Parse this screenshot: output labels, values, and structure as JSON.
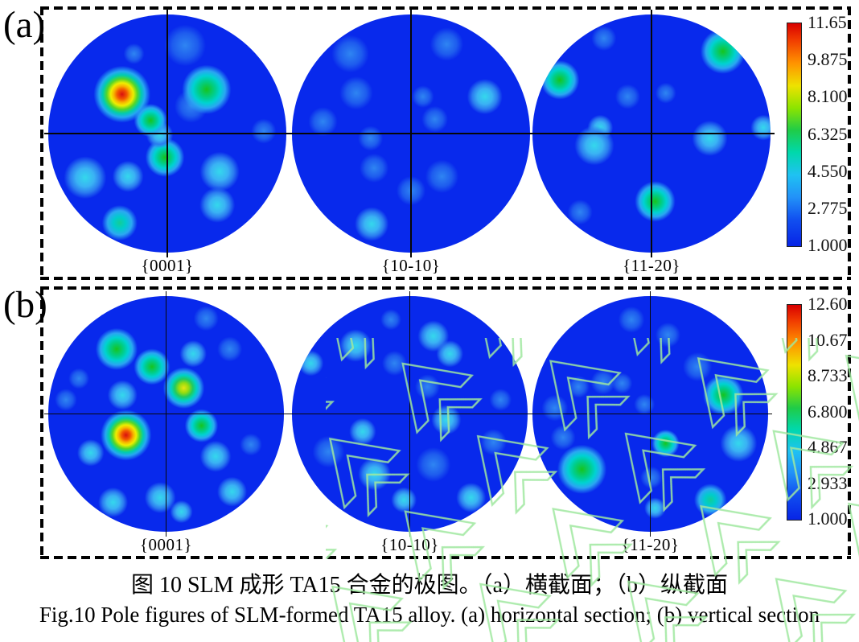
{
  "figure": {
    "caption_zh": "图 10 SLM 成形 TA15 合金的极图。（a）横截面；（b）纵截面",
    "caption_en": "Fig.10 Pole figures of SLM-formed TA15 alloy. (a) horizontal section; (b) vertical section"
  },
  "chart_data": {
    "type": "heatmap",
    "subtype": "EBSD pole figures, jet colormap, two panels of three stereographic projections each",
    "base_color": "#0829ec",
    "crosshair_color": "#070707",
    "watermark_color": "#9fe89f",
    "colorbar_gradient": [
      [
        "#d80000",
        0
      ],
      [
        "#f03800",
        7
      ],
      [
        "#ff9400",
        18
      ],
      [
        "#eee200",
        28
      ],
      [
        "#8ce400",
        38
      ],
      [
        "#1fcc48",
        48
      ],
      [
        "#00d8ac",
        58
      ],
      [
        "#1fc2f2",
        68
      ],
      [
        "#2292f8",
        78
      ],
      [
        "#1150f0",
        88
      ],
      [
        "#0724e6",
        100
      ]
    ],
    "levels": {
      "red": [
        [
          "#d81010",
          0
        ],
        [
          "#f25800",
          16
        ],
        [
          "#f7b400",
          27
        ],
        [
          "#eeee00",
          37
        ],
        [
          "#55d628",
          50
        ],
        [
          "#00ccb0",
          63
        ],
        [
          "#26a8f2",
          75
        ],
        [
          "rgba(30,80,240,0)",
          93
        ]
      ],
      "yellow": [
        [
          "#e6e612",
          0
        ],
        [
          "#96dc10",
          22
        ],
        [
          "#22ca5e",
          40
        ],
        [
          "#00d2c6",
          57
        ],
        [
          "#2aa2f2",
          72
        ],
        [
          "rgba(30,80,240,0)",
          92
        ]
      ],
      "green": [
        [
          "#16c41e",
          0
        ],
        [
          "#00ce8e",
          32
        ],
        [
          "#00d2d2",
          50
        ],
        [
          "#2aa6f2",
          68
        ],
        [
          "rgba(30,80,240,0)",
          90
        ]
      ],
      "teal": [
        [
          "#14cc96",
          0
        ],
        [
          "#00cccc",
          30
        ],
        [
          "#2ca8f2",
          60
        ],
        [
          "rgba(30,80,240,0)",
          88
        ]
      ],
      "cyan": [
        [
          "#34d8ec",
          0
        ],
        [
          "#3ab2f4",
          38
        ],
        [
          "#2b7df0",
          62
        ],
        [
          "rgba(30,80,240,0)",
          88
        ]
      ],
      "faint": [
        [
          "#2f85f2",
          0
        ],
        [
          "#1e5cee",
          52
        ],
        [
          "rgba(16,56,232,0)",
          86
        ]
      ]
    },
    "panels": [
      {
        "tag": "(a)",
        "section_zh": "横截面",
        "section_en": "horizontal section",
        "colorbar": {
          "max": 11.65,
          "min": 1.0,
          "ticks": [
            "11.65",
            "9.875",
            "8.100",
            "6.325",
            "4.550",
            "2.775",
            "1.000"
          ]
        },
        "pole_figures": [
          {
            "label": "{0001}",
            "hotspots": [
              {
                "x": 0.31,
                "y": 0.335,
                "r": 0.13,
                "level": "red"
              },
              {
                "x": 0.665,
                "y": 0.315,
                "r": 0.115,
                "level": "green"
              },
              {
                "x": 0.6,
                "y": 0.385,
                "r": 0.08,
                "level": "faint"
              },
              {
                "x": 0.43,
                "y": 0.445,
                "r": 0.078,
                "level": "green"
              },
              {
                "x": 0.468,
                "y": 0.505,
                "r": 0.065,
                "level": "cyan"
              },
              {
                "x": 0.49,
                "y": 0.6,
                "r": 0.092,
                "level": "green"
              },
              {
                "x": 0.3,
                "y": 0.875,
                "r": 0.085,
                "level": "teal"
              },
              {
                "x": 0.155,
                "y": 0.685,
                "r": 0.1,
                "level": "cyan"
              },
              {
                "x": 0.335,
                "y": 0.68,
                "r": 0.075,
                "level": "cyan"
              },
              {
                "x": 0.72,
                "y": 0.66,
                "r": 0.095,
                "level": "cyan"
              },
              {
                "x": 0.71,
                "y": 0.8,
                "r": 0.085,
                "level": "cyan"
              },
              {
                "x": 0.575,
                "y": 0.13,
                "r": 0.1,
                "level": "faint"
              },
              {
                "x": 0.905,
                "y": 0.49,
                "r": 0.06,
                "level": "faint"
              },
              {
                "x": 0.36,
                "y": 0.165,
                "r": 0.05,
                "level": "faint"
              }
            ]
          },
          {
            "label": "{10-10}",
            "hotspots": [
              {
                "x": 0.81,
                "y": 0.345,
                "r": 0.085,
                "level": "cyan"
              },
              {
                "x": 0.335,
                "y": 0.88,
                "r": 0.08,
                "level": "cyan"
              },
              {
                "x": 0.245,
                "y": 0.165,
                "r": 0.09,
                "level": "faint"
              },
              {
                "x": 0.65,
                "y": 0.125,
                "r": 0.08,
                "level": "faint"
              },
              {
                "x": 0.27,
                "y": 0.33,
                "r": 0.08,
                "level": "faint"
              },
              {
                "x": 0.13,
                "y": 0.45,
                "r": 0.07,
                "level": "faint"
              },
              {
                "x": 0.6,
                "y": 0.44,
                "r": 0.065,
                "level": "faint"
              },
              {
                "x": 0.345,
                "y": 0.645,
                "r": 0.07,
                "level": "faint"
              },
              {
                "x": 0.5,
                "y": 0.74,
                "r": 0.07,
                "level": "faint"
              },
              {
                "x": 0.63,
                "y": 0.68,
                "r": 0.08,
                "level": "faint"
              },
              {
                "x": 0.33,
                "y": 0.52,
                "r": 0.06,
                "level": "faint"
              },
              {
                "x": 0.55,
                "y": 0.345,
                "r": 0.055,
                "level": "faint"
              }
            ]
          },
          {
            "label": "{11-20}",
            "hotspots": [
              {
                "x": 0.8,
                "y": 0.155,
                "r": 0.105,
                "level": "green"
              },
              {
                "x": 0.86,
                "y": 0.105,
                "r": 0.07,
                "level": "cyan"
              },
              {
                "x": 0.115,
                "y": 0.275,
                "r": 0.09,
                "level": "green"
              },
              {
                "x": 0.26,
                "y": 0.55,
                "r": 0.095,
                "level": "cyan"
              },
              {
                "x": 0.285,
                "y": 0.475,
                "r": 0.06,
                "level": "cyan"
              },
              {
                "x": 0.745,
                "y": 0.52,
                "r": 0.085,
                "level": "cyan"
              },
              {
                "x": 0.515,
                "y": 0.785,
                "r": 0.095,
                "level": "green"
              },
              {
                "x": 0.4,
                "y": 0.345,
                "r": 0.06,
                "level": "faint"
              },
              {
                "x": 0.56,
                "y": 0.33,
                "r": 0.05,
                "level": "faint"
              },
              {
                "x": 0.97,
                "y": 0.475,
                "r": 0.06,
                "level": "cyan"
              },
              {
                "x": 0.3,
                "y": 0.1,
                "r": 0.06,
                "level": "faint"
              },
              {
                "x": 0.2,
                "y": 0.83,
                "r": 0.06,
                "level": "faint"
              }
            ]
          }
        ]
      },
      {
        "tag": "(b)",
        "section_zh": "纵截面",
        "section_en": "vertical section",
        "colorbar": {
          "max": 12.6,
          "min": 1.0,
          "ticks": [
            "12.60",
            "10.67",
            "8.733",
            "6.800",
            "4.867",
            "2.933",
            "1.000"
          ]
        },
        "pole_figures": [
          {
            "label": "{0001}",
            "hotspots": [
              {
                "x": 0.29,
                "y": 0.225,
                "r": 0.1,
                "level": "green"
              },
              {
                "x": 0.44,
                "y": 0.3,
                "r": 0.085,
                "level": "green"
              },
              {
                "x": 0.575,
                "y": 0.39,
                "r": 0.095,
                "level": "yellow"
              },
              {
                "x": 0.33,
                "y": 0.59,
                "r": 0.115,
                "level": "red"
              },
              {
                "x": 0.65,
                "y": 0.55,
                "r": 0.08,
                "level": "green"
              },
              {
                "x": 0.315,
                "y": 0.42,
                "r": 0.07,
                "level": "cyan"
              },
              {
                "x": 0.615,
                "y": 0.245,
                "r": 0.065,
                "level": "cyan"
              },
              {
                "x": 0.77,
                "y": 0.225,
                "r": 0.06,
                "level": "faint"
              },
              {
                "x": 0.18,
                "y": 0.665,
                "r": 0.065,
                "level": "cyan"
              },
              {
                "x": 0.71,
                "y": 0.68,
                "r": 0.075,
                "level": "cyan"
              },
              {
                "x": 0.275,
                "y": 0.875,
                "r": 0.07,
                "level": "cyan"
              },
              {
                "x": 0.475,
                "y": 0.855,
                "r": 0.075,
                "level": "cyan"
              },
              {
                "x": 0.565,
                "y": 0.915,
                "r": 0.055,
                "level": "cyan"
              },
              {
                "x": 0.78,
                "y": 0.83,
                "r": 0.07,
                "level": "cyan"
              },
              {
                "x": 0.075,
                "y": 0.44,
                "r": 0.055,
                "level": "faint"
              },
              {
                "x": 0.67,
                "y": 0.095,
                "r": 0.06,
                "level": "faint"
              },
              {
                "x": 0.86,
                "y": 0.63,
                "r": 0.055,
                "level": "faint"
              },
              {
                "x": 0.13,
                "y": 0.35,
                "r": 0.05,
                "level": "faint"
              }
            ]
          },
          {
            "label": "{10-10}",
            "hotspots": [
              {
                "x": 0.655,
                "y": 0.525,
                "r": 0.07,
                "level": "cyan"
              },
              {
                "x": 0.6,
                "y": 0.17,
                "r": 0.075,
                "level": "cyan"
              },
              {
                "x": 0.67,
                "y": 0.245,
                "r": 0.065,
                "level": "cyan"
              },
              {
                "x": 0.27,
                "y": 0.21,
                "r": 0.08,
                "level": "cyan"
              },
              {
                "x": 0.08,
                "y": 0.285,
                "r": 0.06,
                "level": "cyan"
              },
              {
                "x": 0.435,
                "y": 0.285,
                "r": 0.06,
                "level": "faint"
              },
              {
                "x": 0.575,
                "y": 0.385,
                "r": 0.06,
                "level": "faint"
              },
              {
                "x": 0.3,
                "y": 0.575,
                "r": 0.065,
                "level": "cyan"
              },
              {
                "x": 0.155,
                "y": 0.66,
                "r": 0.08,
                "level": "faint"
              },
              {
                "x": 0.35,
                "y": 0.755,
                "r": 0.08,
                "level": "cyan"
              },
              {
                "x": 0.475,
                "y": 0.865,
                "r": 0.06,
                "level": "cyan"
              },
              {
                "x": 0.76,
                "y": 0.855,
                "r": 0.07,
                "level": "cyan"
              },
              {
                "x": 0.6,
                "y": 0.715,
                "r": 0.085,
                "level": "faint"
              },
              {
                "x": 0.855,
                "y": 0.62,
                "r": 0.065,
                "level": "faint"
              },
              {
                "x": 0.885,
                "y": 0.44,
                "r": 0.055,
                "level": "faint"
              },
              {
                "x": 0.42,
                "y": 0.1,
                "r": 0.05,
                "level": "faint"
              }
            ]
          },
          {
            "label": "{11-20}",
            "hotspots": [
              {
                "x": 0.81,
                "y": 0.42,
                "r": 0.095,
                "level": "green"
              },
              {
                "x": 0.21,
                "y": 0.735,
                "r": 0.115,
                "level": "green"
              },
              {
                "x": 0.565,
                "y": 0.625,
                "r": 0.065,
                "level": "green"
              },
              {
                "x": 0.755,
                "y": 0.865,
                "r": 0.08,
                "level": "teal"
              },
              {
                "x": 0.875,
                "y": 0.625,
                "r": 0.09,
                "level": "cyan"
              },
              {
                "x": 0.7,
                "y": 0.3,
                "r": 0.07,
                "level": "faint"
              },
              {
                "x": 0.42,
                "y": 0.1,
                "r": 0.065,
                "level": "faint"
              },
              {
                "x": 0.575,
                "y": 0.165,
                "r": 0.06,
                "level": "faint"
              },
              {
                "x": 0.3,
                "y": 0.365,
                "r": 0.06,
                "level": "faint"
              },
              {
                "x": 0.195,
                "y": 0.385,
                "r": 0.055,
                "level": "faint"
              },
              {
                "x": 0.38,
                "y": 0.37,
                "r": 0.05,
                "level": "faint"
              },
              {
                "x": 0.095,
                "y": 0.475,
                "r": 0.065,
                "level": "faint"
              },
              {
                "x": 0.475,
                "y": 0.46,
                "r": 0.05,
                "level": "faint"
              },
              {
                "x": 0.52,
                "y": 0.9,
                "r": 0.05,
                "level": "cyan"
              },
              {
                "x": 0.505,
                "y": 0.77,
                "r": 0.055,
                "level": "faint"
              },
              {
                "x": 0.13,
                "y": 0.6,
                "r": 0.06,
                "level": "faint"
              }
            ]
          }
        ]
      }
    ]
  }
}
